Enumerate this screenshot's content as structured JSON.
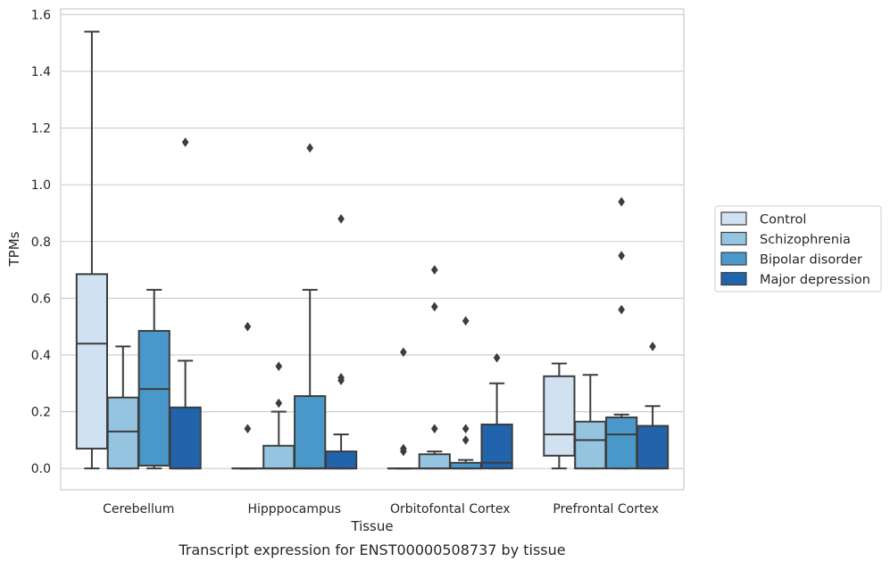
{
  "chart_data": {
    "type": "boxplot",
    "title": "",
    "caption": "Transcript expression for ENST00000508737 by tissue",
    "xlabel": "Tissue",
    "ylabel": "TPMs",
    "ylim": [
      -0.075,
      1.62
    ],
    "yticks": [
      0.0,
      0.2,
      0.4,
      0.6,
      0.8,
      1.0,
      1.2,
      1.4,
      1.6
    ],
    "ytick_labels": [
      "0.0",
      "0.2",
      "0.4",
      "0.6",
      "0.8",
      "1.0",
      "1.2",
      "1.4",
      "1.6"
    ],
    "grid": "horizontal",
    "legend_position": "right",
    "categories": [
      "Cerebellum",
      "Hipppocampus",
      "Orbitofontal Cortex",
      "Prefrontal Cortex"
    ],
    "series": [
      {
        "name": "Control",
        "color": "#d0e1f2",
        "boxes": [
          {
            "whislo": 0.0,
            "q1": 0.07,
            "med": 0.44,
            "q3": 0.685,
            "whishi": 1.54,
            "fliers": []
          },
          {
            "whislo": 0.0,
            "q1": 0.0,
            "med": 0.0,
            "q3": 0.0,
            "whishi": 0.0,
            "fliers": [
              0.14,
              0.5
            ]
          },
          {
            "whislo": 0.0,
            "q1": 0.0,
            "med": 0.0,
            "q3": 0.0,
            "whishi": 0.0,
            "fliers": [
              0.06,
              0.07,
              0.41
            ]
          },
          {
            "whislo": 0.0,
            "q1": 0.045,
            "med": 0.12,
            "q3": 0.325,
            "whishi": 0.37,
            "fliers": []
          }
        ]
      },
      {
        "name": "Schizophrenia",
        "color": "#94c4df",
        "boxes": [
          {
            "whislo": 0.0,
            "q1": 0.0,
            "med": 0.13,
            "q3": 0.25,
            "whishi": 0.43,
            "fliers": []
          },
          {
            "whislo": 0.0,
            "q1": 0.0,
            "med": 0.0,
            "q3": 0.08,
            "whishi": 0.2,
            "fliers": [
              0.23,
              0.36
            ]
          },
          {
            "whislo": 0.0,
            "q1": 0.0,
            "med": 0.0,
            "q3": 0.05,
            "whishi": 0.06,
            "fliers": [
              0.14,
              0.57,
              0.7
            ]
          },
          {
            "whislo": 0.0,
            "q1": 0.0,
            "med": 0.1,
            "q3": 0.165,
            "whishi": 0.33,
            "fliers": []
          }
        ]
      },
      {
        "name": "Bipolar disorder",
        "color": "#4a98c9",
        "boxes": [
          {
            "whislo": 0.0,
            "q1": 0.01,
            "med": 0.28,
            "q3": 0.485,
            "whishi": 0.63,
            "fliers": []
          },
          {
            "whislo": 0.0,
            "q1": 0.0,
            "med": 0.0,
            "q3": 0.255,
            "whishi": 0.63,
            "fliers": [
              1.13
            ]
          },
          {
            "whislo": 0.0,
            "q1": 0.0,
            "med": 0.0,
            "q3": 0.02,
            "whishi": 0.03,
            "fliers": [
              0.1,
              0.14,
              0.52
            ]
          },
          {
            "whislo": 0.0,
            "q1": 0.0,
            "med": 0.12,
            "q3": 0.18,
            "whishi": 0.19,
            "fliers": [
              0.56,
              0.75,
              0.94
            ]
          }
        ]
      },
      {
        "name": "Major depression",
        "color": "#2164ab",
        "boxes": [
          {
            "whislo": 0.0,
            "q1": 0.0,
            "med": 0.0,
            "q3": 0.215,
            "whishi": 0.38,
            "fliers": [
              1.15
            ]
          },
          {
            "whislo": 0.0,
            "q1": 0.0,
            "med": 0.0,
            "q3": 0.06,
            "whishi": 0.12,
            "fliers": [
              0.31,
              0.32,
              0.88
            ]
          },
          {
            "whislo": 0.0,
            "q1": 0.0,
            "med": 0.02,
            "q3": 0.155,
            "whishi": 0.3,
            "fliers": [
              0.39
            ]
          },
          {
            "whislo": 0.0,
            "q1": 0.0,
            "med": 0.0,
            "q3": 0.15,
            "whishi": 0.22,
            "fliers": [
              0.43
            ]
          }
        ]
      }
    ]
  }
}
